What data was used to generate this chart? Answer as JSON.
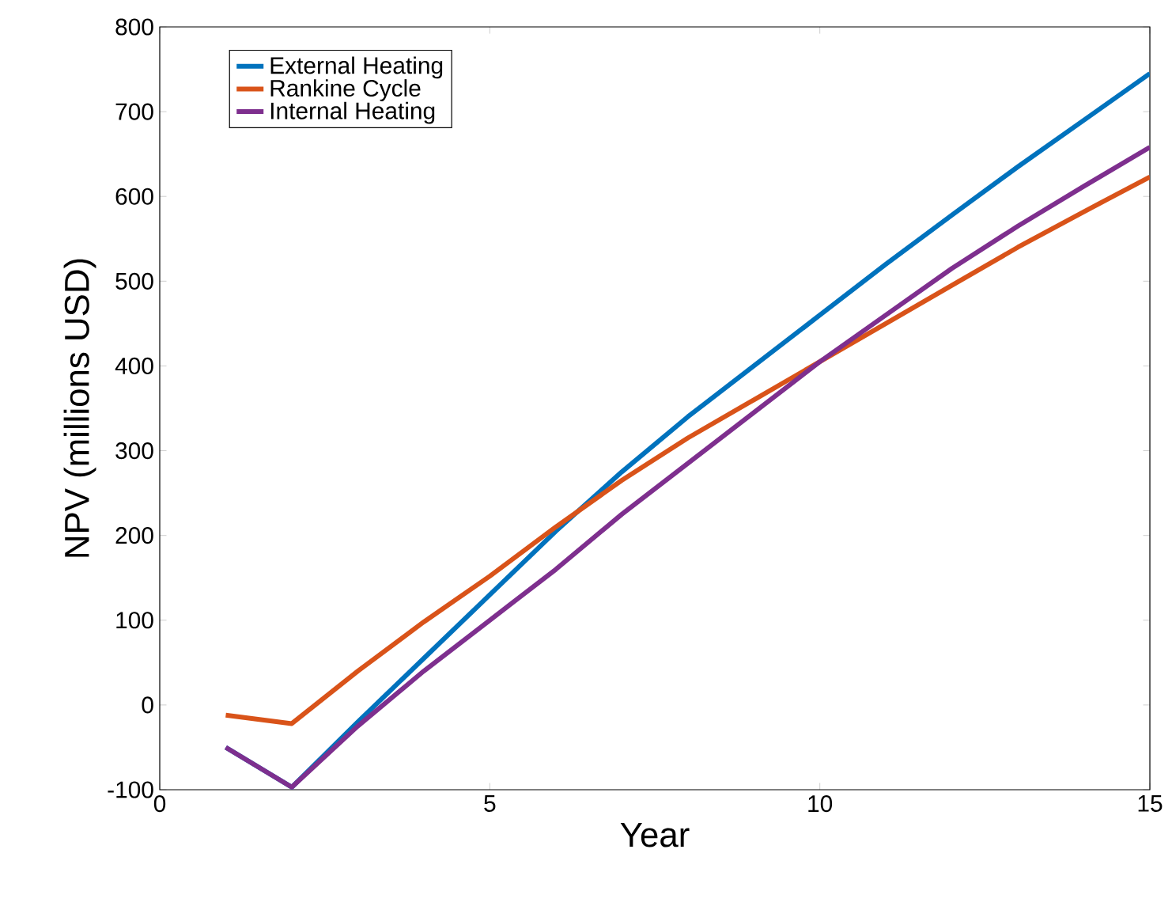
{
  "chart_data": {
    "type": "line",
    "xlabel": "Year",
    "ylabel": "NPV (millions USD)",
    "x": [
      1,
      2,
      3,
      4,
      5,
      6,
      7,
      8,
      9,
      10,
      11,
      12,
      13,
      14,
      15
    ],
    "series": [
      {
        "name": "External Heating",
        "color": "#0072bd",
        "values": [
          -50,
          -97,
          -20,
          55,
          130,
          205,
          275,
          340,
          400,
          460,
          520,
          578,
          635,
          690,
          745
        ]
      },
      {
        "name": "Rankine Cycle",
        "color": "#d95319",
        "values": [
          -12,
          -22,
          40,
          98,
          152,
          210,
          265,
          315,
          360,
          405,
          450,
          495,
          540,
          582,
          623
        ]
      },
      {
        "name": "Internal Heating",
        "color": "#7e2f8e",
        "values": [
          -50,
          -97,
          -25,
          40,
          100,
          160,
          225,
          285,
          345,
          405,
          460,
          515,
          565,
          612,
          658
        ]
      }
    ],
    "xlim": [
      0,
      15
    ],
    "ylim": [
      -100,
      800
    ],
    "xticks": [
      0,
      5,
      10,
      15
    ],
    "yticks": [
      -100,
      0,
      100,
      200,
      300,
      400,
      500,
      600,
      700,
      800
    ],
    "grid": false,
    "legend": "top left",
    "marker": "none",
    "line_style": "solid"
  }
}
